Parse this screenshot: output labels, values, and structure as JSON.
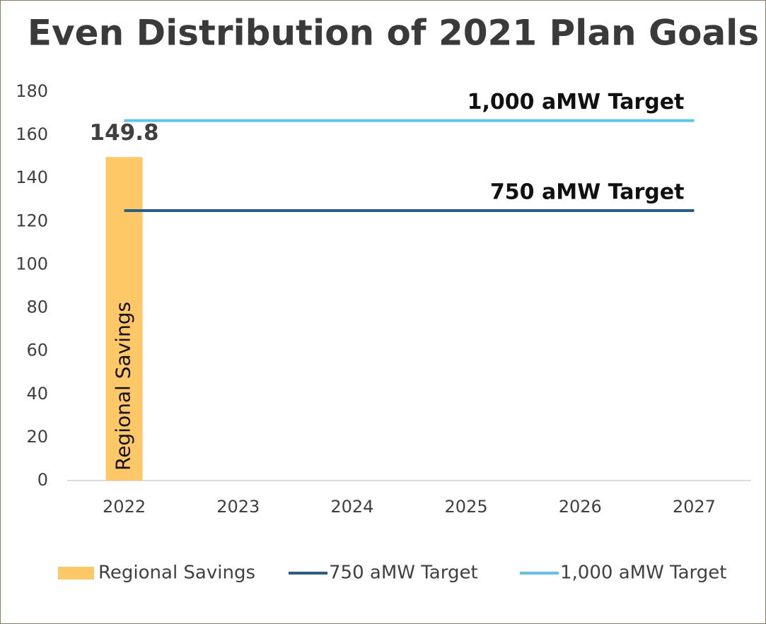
{
  "chart_data": {
    "type": "combo",
    "title": "Even Distribution of 2021 Plan Goals",
    "categories": [
      "2022",
      "2023",
      "2024",
      "2025",
      "2026",
      "2027"
    ],
    "series": [
      {
        "name": "Regional Savings",
        "type": "bar",
        "color": "#fec866",
        "values": [
          149.8,
          null,
          null,
          null,
          null,
          null
        ],
        "value_labels": [
          "149.8",
          null,
          null,
          null,
          null,
          null
        ]
      },
      {
        "name": "750 aMW Target",
        "type": "line",
        "color": "#255e8a",
        "values": [
          125,
          125,
          125,
          125,
          125,
          125
        ]
      },
      {
        "name": "1,000 aMW Target",
        "type": "line",
        "color": "#5bc4f1",
        "values": [
          166.7,
          166.7,
          166.7,
          166.7,
          166.7,
          166.7
        ]
      }
    ],
    "ylim": [
      0,
      180
    ],
    "yticks": [
      0,
      20,
      40,
      60,
      80,
      100,
      120,
      140,
      160,
      180
    ],
    "grid": false,
    "legend": "bottom"
  }
}
